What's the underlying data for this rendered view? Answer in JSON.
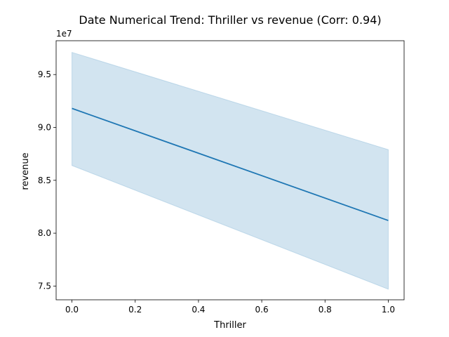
{
  "chart_data": {
    "type": "line",
    "title": "Date Numerical Trend: Thriller vs revenue (Corr: 0.94)",
    "xlabel": "Thriller",
    "ylabel": "revenue",
    "y_offset_label": "1e7",
    "xlim": [
      -0.05,
      1.05
    ],
    "ylim": [
      7.37,
      9.82
    ],
    "x_ticks": [
      0.0,
      0.2,
      0.4,
      0.6,
      0.8,
      1.0
    ],
    "x_tick_labels": [
      "0.0",
      "0.2",
      "0.4",
      "0.6",
      "0.8",
      "1.0"
    ],
    "y_ticks": [
      7.5,
      8.0,
      8.5,
      9.0,
      9.5
    ],
    "y_tick_labels": [
      "7.5",
      "8.0",
      "8.5",
      "9.0",
      "9.5"
    ],
    "grid": false,
    "series": [
      {
        "x": [
          0.0,
          1.0
        ],
        "values": [
          9.18,
          8.12
        ],
        "ci_lower": [
          8.64,
          7.47
        ],
        "ci_upper": [
          9.71,
          8.79
        ],
        "color": "#1f77b4",
        "band_color": "#1f77b4"
      }
    ]
  }
}
